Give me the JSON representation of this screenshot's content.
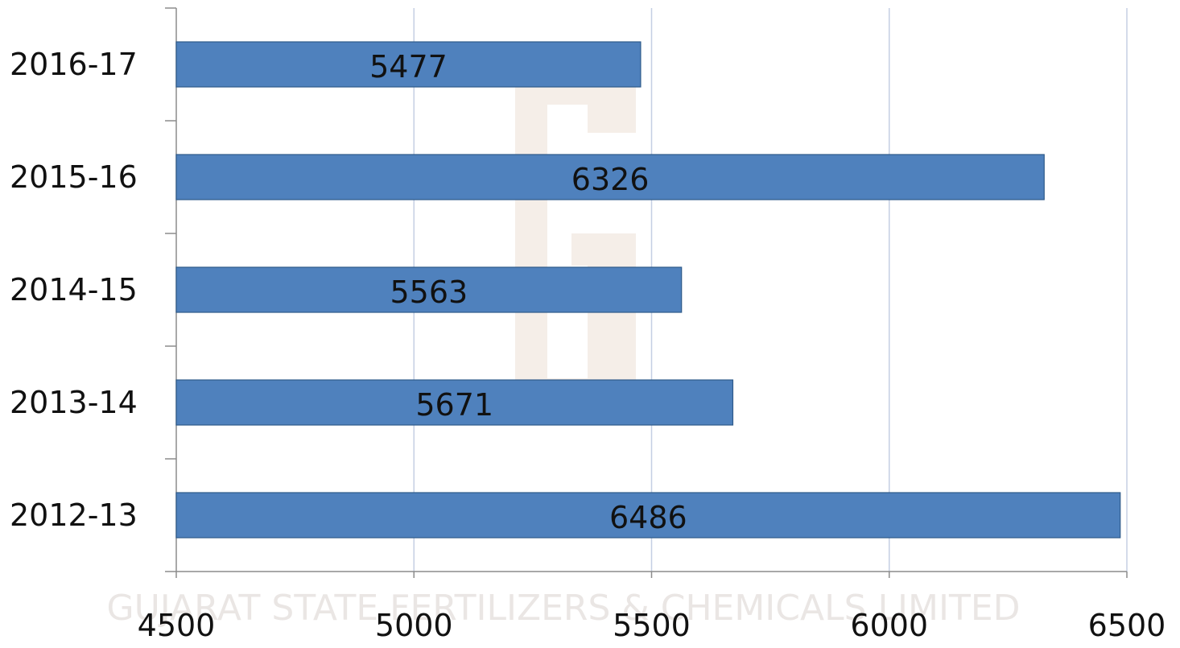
{
  "chart_data": {
    "type": "bar",
    "orientation": "horizontal",
    "categories": [
      "2016-17",
      "2015-16",
      "2014-15",
      "2013-14",
      "2012-13"
    ],
    "values": [
      5477,
      6326,
      5563,
      5671,
      6486
    ],
    "title": "",
    "xlabel": "",
    "ylabel": "",
    "xlim": [
      4500,
      6500
    ],
    "xticks": [
      4500,
      5000,
      5500,
      6000,
      6500
    ],
    "grid": true,
    "legend": "none",
    "data_labels": true
  },
  "colors": {
    "bar_fill": "#4f81bd",
    "bar_stroke": "#2e5a8a",
    "gridline": "#c5cfe3",
    "axis": "#8c8c8c"
  },
  "watermark": {
    "text": "GUJARAT STATE FERTILIZERS & CHEMICALS LIMITED",
    "seal_text": "GUJARAT STATE FERTILIZERS & CHEMICALS LIMITED"
  }
}
